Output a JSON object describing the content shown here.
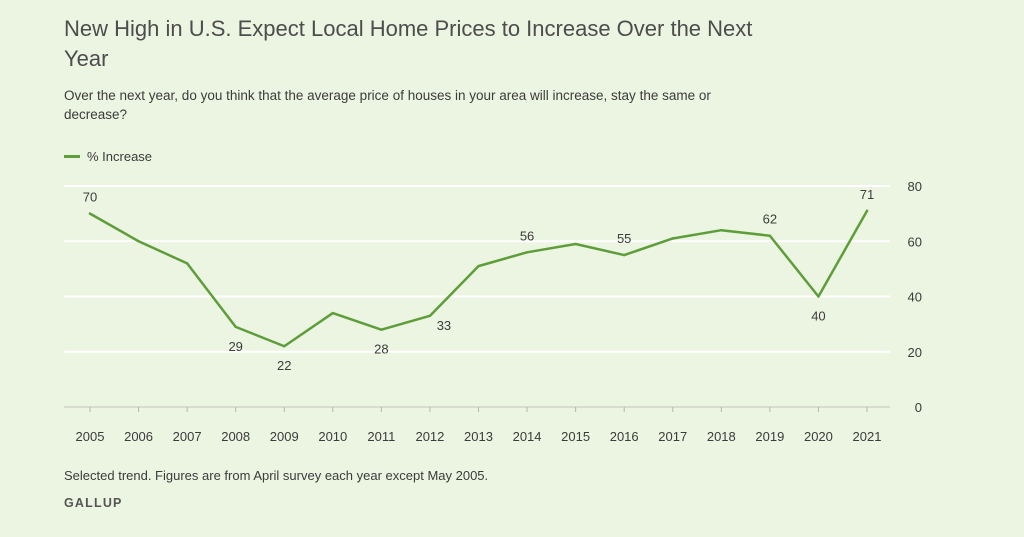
{
  "title": "New High in U.S. Expect Local Home Prices to Increase Over the Next Year",
  "subtitle": "Over the next year, do you think that the average price of houses in your area will increase, stay the same or decrease?",
  "footnote": "Selected trend. Figures are from April survey each year except May 2005.",
  "brand": "GALLUP",
  "colors": {
    "line": "#5e9e3a",
    "grid": "#ffffff",
    "background": "#ecf4e2",
    "text": "#3c3c3c"
  },
  "chart_data": {
    "type": "line",
    "title": "New High in U.S. Expect Local Home Prices to Increase Over the Next Year",
    "xlabel": "",
    "ylabel": "",
    "ylim": [
      0,
      80
    ],
    "yticks": [
      0,
      20,
      40,
      60,
      80
    ],
    "grid": true,
    "legend_position": "top-left",
    "categories": [
      "2005",
      "2006",
      "2007",
      "2008",
      "2009",
      "2010",
      "2011",
      "2012",
      "2013",
      "2014",
      "2015",
      "2016",
      "2017",
      "2018",
      "2019",
      "2020",
      "2021"
    ],
    "series": [
      {
        "name": "% Increase",
        "values": [
          70,
          60,
          52,
          29,
          22,
          34,
          28,
          33,
          51,
          56,
          59,
          55,
          61,
          64,
          62,
          40,
          71
        ],
        "data_labels": [
          {
            "index": 0,
            "text": "70",
            "position": "above"
          },
          {
            "index": 3,
            "text": "29",
            "position": "below"
          },
          {
            "index": 4,
            "text": "22",
            "position": "below"
          },
          {
            "index": 6,
            "text": "28",
            "position": "below"
          },
          {
            "index": 7,
            "text": "33",
            "position": "below-right"
          },
          {
            "index": 9,
            "text": "56",
            "position": "above"
          },
          {
            "index": 11,
            "text": "55",
            "position": "above"
          },
          {
            "index": 14,
            "text": "62",
            "position": "above"
          },
          {
            "index": 15,
            "text": "40",
            "position": "below"
          },
          {
            "index": 16,
            "text": "71",
            "position": "above"
          }
        ]
      }
    ]
  }
}
